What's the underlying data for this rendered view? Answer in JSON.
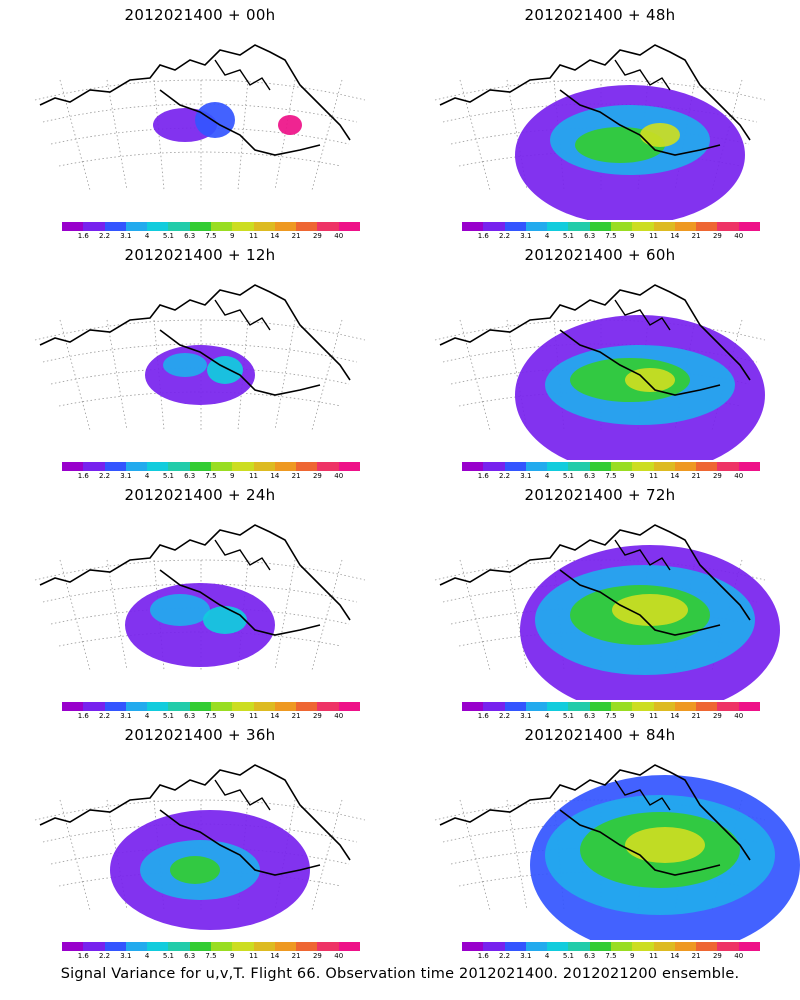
{
  "panels": [
    {
      "title": "2012021400 + 00h",
      "level": 1
    },
    {
      "title": "2012021400 + 48h",
      "level": 5
    },
    {
      "title": "2012021400 + 12h",
      "level": 2
    },
    {
      "title": "2012021400 + 60h",
      "level": 6
    },
    {
      "title": "2012021400 + 24h",
      "level": 3
    },
    {
      "title": "2012021400 + 72h",
      "level": 7
    },
    {
      "title": "2012021400 + 36h",
      "level": 4
    },
    {
      "title": "2012021400 + 84h",
      "level": 8
    }
  ],
  "legend": {
    "colors": [
      "#9900cc",
      "#7722ee",
      "#3355ff",
      "#22aaee",
      "#11ccdd",
      "#22ccaa",
      "#33cc33",
      "#99dd22",
      "#ccdd22",
      "#ddbb22",
      "#ee9922",
      "#ee6633",
      "#ee3366",
      "#ee1188"
    ],
    "labels": [
      "1.6",
      "2.2",
      "3.1",
      "4",
      "5.1",
      "6.3",
      "7.5",
      "9",
      "11",
      "14",
      "21",
      "29",
      "40"
    ]
  },
  "footer": "Signal Variance for u,v,T. Flight 66. Observation time 2012021400. 2012021200 ensemble."
}
